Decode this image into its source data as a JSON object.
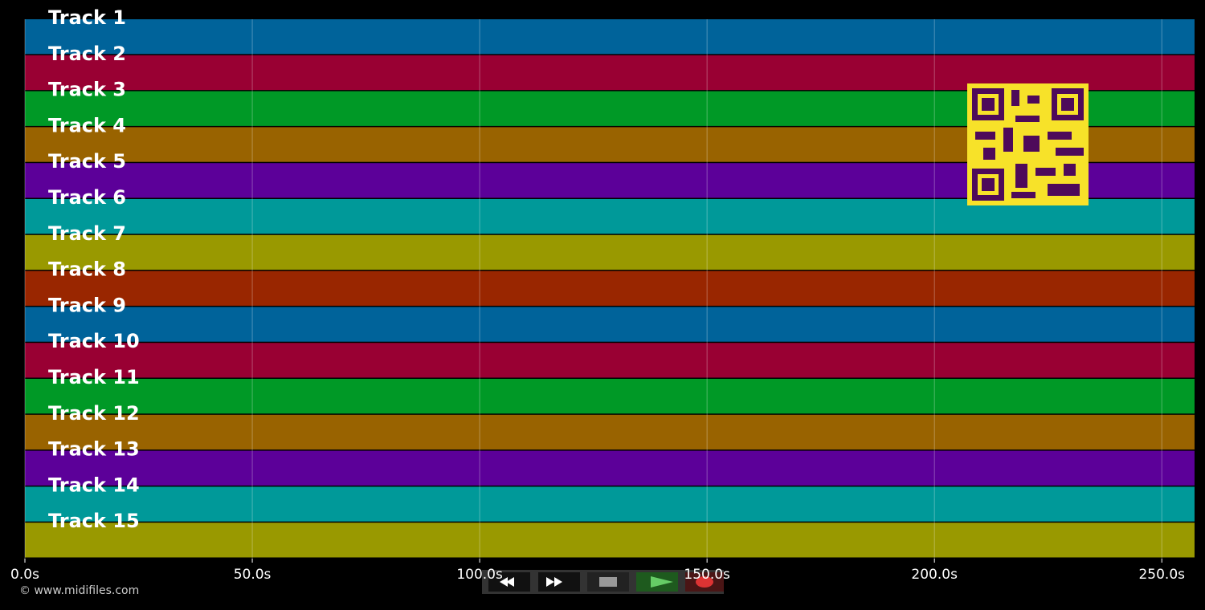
{
  "chart_data": {
    "type": "timeline",
    "tracks": [
      {
        "name": "Track 1",
        "color": "#00639a"
      },
      {
        "name": "Track 2",
        "color": "#990033"
      },
      {
        "name": "Track 3",
        "color": "#009926"
      },
      {
        "name": "Track 4",
        "color": "#996300"
      },
      {
        "name": "Track 5",
        "color": "#5c0099"
      },
      {
        "name": "Track 6",
        "color": "#009999"
      },
      {
        "name": "Track 7",
        "color": "#999900"
      },
      {
        "name": "Track 8",
        "color": "#992600"
      },
      {
        "name": "Track 9",
        "color": "#00639a"
      },
      {
        "name": "Track 10",
        "color": "#990033"
      },
      {
        "name": "Track 11",
        "color": "#009926"
      },
      {
        "name": "Track 12",
        "color": "#996300"
      },
      {
        "name": "Track 13",
        "color": "#5c0099"
      },
      {
        "name": "Track 14",
        "color": "#009999"
      },
      {
        "name": "Track 15",
        "color": "#999900"
      }
    ],
    "xlim": [
      0,
      257.2
    ],
    "xticks": [
      {
        "value": 0,
        "label": "0.0s"
      },
      {
        "value": 50,
        "label": "50.0s"
      },
      {
        "value": 100,
        "label": "100.0s"
      },
      {
        "value": 150,
        "label": "150.0s"
      },
      {
        "value": 200,
        "label": "200.0s"
      },
      {
        "value": 250,
        "label": "250.0s"
      }
    ],
    "grid": true
  },
  "footer": "© www.midifiles.com"
}
